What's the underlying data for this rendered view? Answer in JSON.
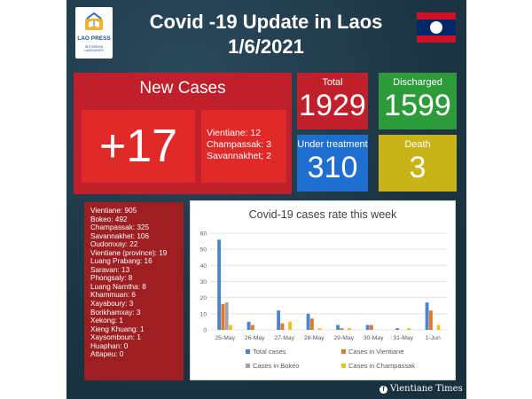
{
  "header": {
    "logo_text": "LAO PRESS",
    "logo_subtext": "IN FOREIGN LANGUAGES",
    "title": "Covid -19 Update in Laos",
    "date": "1/6/2021"
  },
  "new_cases": {
    "title": "New Cases",
    "value": "+17",
    "breakdown": [
      "Vientiane: 12",
      "Champassak: 3",
      "Savannakhet; 2"
    ]
  },
  "stats": {
    "total": {
      "label": "Total",
      "value": "1929"
    },
    "discharged": {
      "label": "Discharged",
      "value": "1599"
    },
    "under_treatment": {
      "label": "Under treatment",
      "value": "310"
    },
    "death": {
      "label": "Death",
      "value": "3"
    }
  },
  "provinces": [
    "Vientiane: 905",
    "Bokeo: 492",
    "Champassak: 325",
    "Savannakhet: 106",
    "Oudomxay: 22",
    "Vientiane (province): 19",
    "Luang Prabang: 16",
    "Saravan: 13",
    "Phongsaly: 8",
    "Luang Namtha: 8",
    "Khammuan: 6",
    "Xayaboury: 3",
    "Borikhamxay: 3",
    "Xekong: 1",
    "Xieng Khuang: 1",
    "Xaysomboun: 1",
    "Huaphan: 0",
    "Attapeu: 0"
  ],
  "chart_data": {
    "type": "bar",
    "title": "Covid-19 cases rate this week",
    "categories": [
      "25-May",
      "26-May",
      "27-May",
      "28-May",
      "29-May",
      "30-May",
      "31-May",
      "1-Jun"
    ],
    "yticks": [
      0,
      10,
      20,
      30,
      40,
      50,
      60
    ],
    "ylim": [
      0,
      60
    ],
    "grid": true,
    "legend_position": "bottom",
    "series": [
      {
        "name": "Total cases",
        "color": "#4a86d0",
        "values": [
          56,
          5,
          12,
          10,
          3,
          3,
          1,
          17
        ]
      },
      {
        "name": "Cases in Vientiane",
        "color": "#e2772e",
        "values": [
          16,
          3,
          4,
          7,
          1,
          3,
          0,
          12
        ]
      },
      {
        "name": "Cases in Bokeo",
        "color": "#a5a5a5",
        "values": [
          17,
          0,
          0,
          0,
          0,
          0,
          0,
          0
        ]
      },
      {
        "name": "Cases in Champassak",
        "color": "#f6bd23",
        "values": [
          3,
          0,
          5,
          1,
          1,
          0,
          1,
          3
        ]
      }
    ]
  },
  "footer": {
    "icon": "facebook-icon",
    "text": "Vientiane Times"
  }
}
